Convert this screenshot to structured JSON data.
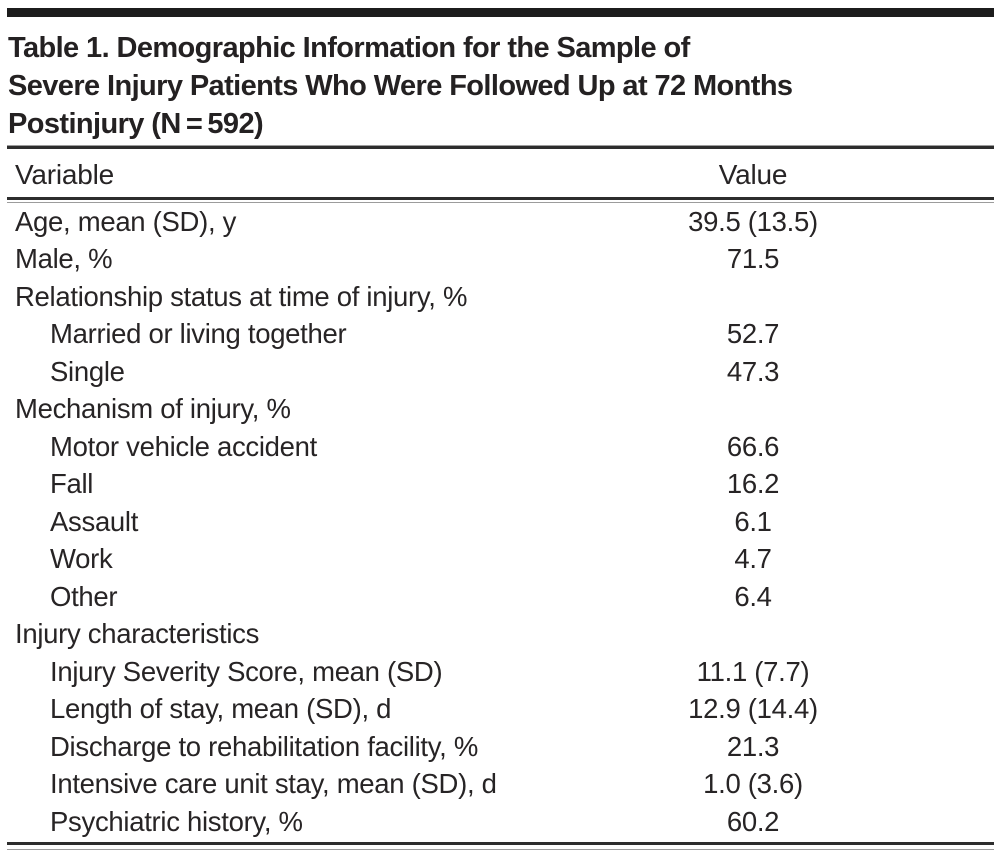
{
  "title_lines": [
    "Table 1. Demographic Information for the Sample of",
    "Severe Injury Patients Who Were Followed Up at 72 Months",
    "Postinjury (N = 592)"
  ],
  "columns": {
    "variable": "Variable",
    "value": "Value"
  },
  "rows": [
    {
      "label": "Age, mean (SD), y",
      "value": "39.5 (13.5)",
      "indent": 0
    },
    {
      "label": "Male, %",
      "value": "71.5",
      "indent": 0
    },
    {
      "label": "Relationship status at time of injury, %",
      "value": "",
      "indent": 0
    },
    {
      "label": "Married or living together",
      "value": "52.7",
      "indent": 1
    },
    {
      "label": "Single",
      "value": "47.3",
      "indent": 1
    },
    {
      "label": "Mechanism of injury, %",
      "value": "",
      "indent": 0
    },
    {
      "label": "Motor vehicle accident",
      "value": "66.6",
      "indent": 1
    },
    {
      "label": "Fall",
      "value": "16.2",
      "indent": 1
    },
    {
      "label": "Assault",
      "value": "6.1",
      "indent": 1
    },
    {
      "label": "Work",
      "value": "4.7",
      "indent": 1
    },
    {
      "label": "Other",
      "value": "6.4",
      "indent": 1
    },
    {
      "label": "Injury characteristics",
      "value": "",
      "indent": 0
    },
    {
      "label": "Injury Severity Score, mean (SD)",
      "value": "11.1 (7.7)",
      "indent": 1
    },
    {
      "label": "Length of stay, mean (SD), d",
      "value": "12.9 (14.4)",
      "indent": 1
    },
    {
      "label": "Discharge to rehabilitation facility, %",
      "value": "21.3",
      "indent": 1
    },
    {
      "label": "Intensive care unit stay, mean (SD), d",
      "value": "1.0 (3.6)",
      "indent": 1
    },
    {
      "label": "Psychiatric history, %",
      "value": "60.2",
      "indent": 1
    }
  ],
  "colors": {
    "text": "#272425",
    "top_bar": "#1c1c1c",
    "rule_dark": "#2d2d2d",
    "rule_light": "#9c9c9c"
  }
}
